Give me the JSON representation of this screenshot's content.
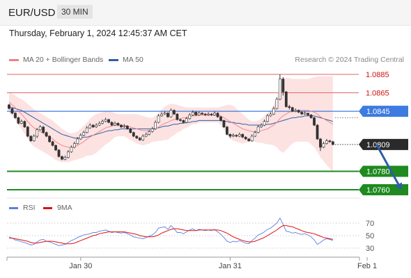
{
  "header": {
    "pair": "EUR/USD",
    "timeframe": "30 MIN"
  },
  "datetime": "Thursday, February 1, 2024 12:45:37 AM CET",
  "legend": {
    "ma20": {
      "label": "MA 20 + Bollinger Bands",
      "color": "#f08080"
    },
    "ma50": {
      "label": "MA 50",
      "color": "#2c5ea8"
    }
  },
  "credit": "Research © 2024 Trading Central",
  "rsi_legend": {
    "rsi": {
      "label": "RSI",
      "color": "#5b7fe0"
    },
    "ma9": {
      "label": "9MA",
      "color": "#e01010"
    }
  },
  "chart_data": [
    {
      "type": "candlestick",
      "ylim": [
        1.0755,
        1.0892
      ],
      "x_ticks": [
        {
          "label": "Jan 30",
          "index": 23
        },
        {
          "label": "Jan 31",
          "index": 71
        },
        {
          "label": "Feb 1",
          "index": 115
        }
      ],
      "last_price": {
        "value": 1.0809,
        "label": "1.0809"
      },
      "levels": [
        {
          "value": 1.0885,
          "label": "1.0885",
          "kind": "resistance"
        },
        {
          "value": 1.0865,
          "label": "1.0865",
          "kind": "resistance"
        },
        {
          "value": 1.0845,
          "label": "1.0845",
          "kind": "pivot"
        },
        {
          "value": 1.078,
          "label": "1.0780",
          "kind": "support"
        },
        {
          "value": 1.076,
          "label": "1.0760",
          "kind": "support"
        }
      ],
      "forecast_arrow": {
        "from": [
          118,
          1.0809
        ],
        "to": [
          126,
          1.076
        ]
      },
      "close": [
        1.0848,
        1.0843,
        1.0838,
        1.0832,
        1.0834,
        1.0828,
        1.0818,
        1.0813,
        1.0818,
        1.0825,
        1.0828,
        1.0822,
        1.0818,
        1.0812,
        1.0808,
        1.0803,
        1.0796,
        1.0793,
        1.0795,
        1.0801,
        1.0806,
        1.081,
        1.0815,
        1.0819,
        1.0822,
        1.0827,
        1.083,
        1.0828,
        1.083,
        1.0832,
        1.0834,
        1.0836,
        1.0833,
        1.083,
        1.0832,
        1.083,
        1.0828,
        1.0829,
        1.0826,
        1.0822,
        1.0818,
        1.0816,
        1.0814,
        1.0818,
        1.082,
        1.0823,
        1.0826,
        1.0833,
        1.084,
        1.0842,
        1.0843,
        1.0839,
        1.0846,
        1.0842,
        1.0836,
        1.0835,
        1.0833,
        1.0837,
        1.0841,
        1.0844,
        1.0841,
        1.0843,
        1.0842,
        1.0841,
        1.0842,
        1.0841,
        1.0843,
        1.0839,
        1.0835,
        1.0828,
        1.082,
        1.0818,
        1.0819,
        1.0818,
        1.082,
        1.0817,
        1.0815,
        1.0813,
        1.0818,
        1.0822,
        1.0828,
        1.083,
        1.0834,
        1.084,
        1.0842,
        1.0848,
        1.0858,
        1.088,
        1.0866,
        1.085,
        1.0849,
        1.0845,
        1.0846,
        1.0844,
        1.0842,
        1.0843,
        1.0841,
        1.0838,
        1.083,
        1.0815,
        1.0806,
        1.081,
        1.0813,
        1.0812,
        1.0809
      ],
      "open": [
        1.0852,
        1.0848,
        1.0843,
        1.0838,
        1.0832,
        1.0834,
        1.0828,
        1.0818,
        1.0813,
        1.0818,
        1.0825,
        1.0828,
        1.0822,
        1.0818,
        1.0812,
        1.0808,
        1.0803,
        1.0796,
        1.0793,
        1.0795,
        1.0801,
        1.0806,
        1.081,
        1.0815,
        1.0819,
        1.0822,
        1.0827,
        1.083,
        1.0828,
        1.083,
        1.0832,
        1.0834,
        1.0836,
        1.0833,
        1.083,
        1.0832,
        1.083,
        1.0828,
        1.0829,
        1.0826,
        1.0822,
        1.0818,
        1.0816,
        1.0814,
        1.0818,
        1.082,
        1.0823,
        1.0826,
        1.0833,
        1.084,
        1.0842,
        1.0843,
        1.0839,
        1.0846,
        1.0842,
        1.0836,
        1.0835,
        1.0833,
        1.0837,
        1.0841,
        1.0844,
        1.0841,
        1.0843,
        1.0842,
        1.0841,
        1.0842,
        1.0841,
        1.0843,
        1.0839,
        1.0835,
        1.0828,
        1.082,
        1.0818,
        1.0819,
        1.0818,
        1.082,
        1.0817,
        1.0815,
        1.0813,
        1.0818,
        1.0822,
        1.0828,
        1.083,
        1.0834,
        1.084,
        1.0842,
        1.0848,
        1.0858,
        1.088,
        1.0866,
        1.085,
        1.0849,
        1.0845,
        1.0846,
        1.0844,
        1.0842,
        1.0843,
        1.0841,
        1.0838,
        1.083,
        1.0815,
        1.0806,
        1.081,
        1.0813,
        1.0812
      ],
      "high": [
        1.0853,
        1.0849,
        1.0844,
        1.0839,
        1.0836,
        1.0835,
        1.0829,
        1.0819,
        1.082,
        1.0827,
        1.083,
        1.0829,
        1.0823,
        1.0819,
        1.0813,
        1.0809,
        1.0804,
        1.0797,
        1.0797,
        1.0803,
        1.0808,
        1.0812,
        1.0817,
        1.0821,
        1.0824,
        1.0829,
        1.0832,
        1.0831,
        1.0832,
        1.0834,
        1.0836,
        1.0838,
        1.0837,
        1.0834,
        1.0834,
        1.0833,
        1.0831,
        1.0831,
        1.083,
        1.0827,
        1.0823,
        1.0819,
        1.0817,
        1.082,
        1.0822,
        1.0825,
        1.0828,
        1.0835,
        1.0842,
        1.0844,
        1.0845,
        1.0844,
        1.0848,
        1.0847,
        1.0843,
        1.0837,
        1.0836,
        1.0839,
        1.0843,
        1.0846,
        1.0845,
        1.0845,
        1.0844,
        1.0843,
        1.0844,
        1.0843,
        1.0845,
        1.0844,
        1.084,
        1.0836,
        1.0829,
        1.0821,
        1.0821,
        1.082,
        1.0822,
        1.0821,
        1.0818,
        1.0816,
        1.082,
        1.0824,
        1.083,
        1.0832,
        1.0836,
        1.0842,
        1.0844,
        1.085,
        1.086,
        1.0885,
        1.0882,
        1.0867,
        1.0852,
        1.085,
        1.0848,
        1.0847,
        1.0845,
        1.0845,
        1.0843,
        1.0842,
        1.0839,
        1.0831,
        1.0816,
        1.0812,
        1.0815,
        1.0814,
        1.0813
      ],
      "low": [
        1.0847,
        1.0842,
        1.0837,
        1.0831,
        1.0831,
        1.0827,
        1.0817,
        1.0812,
        1.0812,
        1.0816,
        1.0824,
        1.0821,
        1.0817,
        1.0811,
        1.0807,
        1.0802,
        1.0795,
        1.0792,
        1.0792,
        1.0794,
        1.08,
        1.0805,
        1.0809,
        1.0814,
        1.0818,
        1.0821,
        1.0826,
        1.0827,
        1.0827,
        1.0829,
        1.0831,
        1.0833,
        1.0832,
        1.0829,
        1.0829,
        1.0829,
        1.0827,
        1.0827,
        1.0825,
        1.0821,
        1.0817,
        1.0815,
        1.0813,
        1.0813,
        1.0817,
        1.0819,
        1.0822,
        1.0825,
        1.0832,
        1.0839,
        1.0841,
        1.0838,
        1.0838,
        1.0841,
        1.0835,
        1.0834,
        1.0832,
        1.0832,
        1.0836,
        1.084,
        1.084,
        1.084,
        1.0841,
        1.084,
        1.084,
        1.084,
        1.084,
        1.0838,
        1.0834,
        1.0827,
        1.0819,
        1.0816,
        1.0817,
        1.0817,
        1.0817,
        1.0816,
        1.0814,
        1.0812,
        1.0812,
        1.0817,
        1.0821,
        1.0827,
        1.0829,
        1.0833,
        1.0839,
        1.0841,
        1.0847,
        1.0857,
        1.0862,
        1.0849,
        1.0847,
        1.0844,
        1.0844,
        1.0843,
        1.0841,
        1.0841,
        1.084,
        1.0837,
        1.0829,
        1.0814,
        1.0802,
        1.0805,
        1.0809,
        1.0811,
        1.0808
      ],
      "ma20": [
        1.0855,
        1.0852,
        1.0849,
        1.0845,
        1.0842,
        1.0838,
        1.0834,
        1.083,
        1.0827,
        1.0825,
        1.0823,
        1.0821,
        1.0819,
        1.0817,
        1.0815,
        1.0812,
        1.081,
        1.0808,
        1.0807,
        1.0806,
        1.0806,
        1.0807,
        1.0808,
        1.081,
        1.0812,
        1.0815,
        1.0817,
        1.0819,
        1.0821,
        1.0823,
        1.0825,
        1.0827,
        1.0828,
        1.0829,
        1.083,
        1.083,
        1.083,
        1.083,
        1.0829,
        1.0828,
        1.0827,
        1.0826,
        1.0825,
        1.0824,
        1.0824,
        1.0824,
        1.0825,
        1.0826,
        1.0828,
        1.083,
        1.0832,
        1.0833,
        1.0835,
        1.0836,
        1.0837,
        1.0837,
        1.0838,
        1.0838,
        1.0839,
        1.084,
        1.084,
        1.0841,
        1.0841,
        1.0841,
        1.0841,
        1.0841,
        1.0841,
        1.0841,
        1.084,
        1.0838,
        1.0836,
        1.0834,
        1.0832,
        1.083,
        1.0828,
        1.0826,
        1.0825,
        1.0824,
        1.0823,
        1.0823,
        1.0823,
        1.0824,
        1.0825,
        1.0826,
        1.0828,
        1.083,
        1.0833,
        1.0837,
        1.084,
        1.0842,
        1.0844,
        1.0845,
        1.0846,
        1.0846,
        1.0846,
        1.0846,
        1.0846,
        1.0845,
        1.0844,
        1.0842,
        1.0839,
        1.0837,
        1.0835,
        1.0833,
        1.0831
      ],
      "ma50": [
        1.085,
        1.0849,
        1.0848,
        1.0847,
        1.0846,
        1.0844,
        1.0842,
        1.084,
        1.0838,
        1.0836,
        1.0834,
        1.0832,
        1.083,
        1.0828,
        1.0826,
        1.0824,
        1.0822,
        1.082,
        1.0819,
        1.0818,
        1.0817,
        1.0816,
        1.0816,
        1.0816,
        1.0817,
        1.0817,
        1.0818,
        1.0819,
        1.082,
        1.0821,
        1.0822,
        1.0823,
        1.0824,
        1.0824,
        1.0825,
        1.0825,
        1.0826,
        1.0826,
        1.0826,
        1.0826,
        1.0826,
        1.0826,
        1.0826,
        1.0826,
        1.0826,
        1.0826,
        1.0826,
        1.0827,
        1.0827,
        1.0828,
        1.0829,
        1.0829,
        1.083,
        1.0831,
        1.0831,
        1.0832,
        1.0832,
        1.0833,
        1.0833,
        1.0834,
        1.0834,
        1.0835,
        1.0835,
        1.0835,
        1.0835,
        1.0835,
        1.0835,
        1.0835,
        1.0835,
        1.0834,
        1.0834,
        1.0833,
        1.0833,
        1.0832,
        1.0832,
        1.0831,
        1.0831,
        1.083,
        1.083,
        1.083,
        1.083,
        1.083,
        1.083,
        1.0831,
        1.0831,
        1.0832,
        1.0833,
        1.0834,
        1.0835,
        1.0836,
        1.0837,
        1.0838,
        1.0838,
        1.0839,
        1.0839,
        1.084,
        1.084,
        1.084,
        1.084,
        1.0839,
        1.0838,
        1.0837,
        1.0836,
        1.0835,
        1.0834
      ],
      "bb_upper": [
        1.0866,
        1.0864,
        1.0862,
        1.086,
        1.0858,
        1.0856,
        1.0853,
        1.085,
        1.0847,
        1.0845,
        1.0843,
        1.0841,
        1.0839,
        1.0837,
        1.0835,
        1.0832,
        1.0829,
        1.0826,
        1.0824,
        1.0822,
        1.0821,
        1.0822,
        1.0823,
        1.0826,
        1.0829,
        1.0833,
        1.0837,
        1.084,
        1.0842,
        1.0843,
        1.0844,
        1.0845,
        1.0845,
        1.0844,
        1.0843,
        1.0842,
        1.0842,
        1.0842,
        1.0842,
        1.0842,
        1.0842,
        1.0842,
        1.0841,
        1.084,
        1.0839,
        1.0838,
        1.0838,
        1.084,
        1.0843,
        1.0847,
        1.085,
        1.0852,
        1.0853,
        1.0853,
        1.0852,
        1.0851,
        1.085,
        1.0849,
        1.0849,
        1.0849,
        1.0849,
        1.0849,
        1.0849,
        1.0849,
        1.0849,
        1.0849,
        1.0849,
        1.0849,
        1.085,
        1.0851,
        1.0852,
        1.0852,
        1.0851,
        1.0848,
        1.0845,
        1.0842,
        1.0839,
        1.0836,
        1.0834,
        1.0834,
        1.0835,
        1.0837,
        1.084,
        1.0843,
        1.0847,
        1.0852,
        1.086,
        1.0872,
        1.088,
        1.0881,
        1.0881,
        1.088,
        1.088,
        1.088,
        1.088,
        1.088,
        1.088,
        1.0881,
        1.0882,
        1.0883,
        1.0883,
        1.0883,
        1.0883,
        1.0883,
        1.0883
      ],
      "bb_lower": [
        1.0844,
        1.084,
        1.0836,
        1.083,
        1.0826,
        1.082,
        1.0815,
        1.081,
        1.0807,
        1.0805,
        1.0803,
        1.0801,
        1.0799,
        1.0797,
        1.0795,
        1.0792,
        1.0791,
        1.079,
        1.079,
        1.079,
        1.0791,
        1.0792,
        1.0793,
        1.0794,
        1.0795,
        1.0797,
        1.0797,
        1.0798,
        1.08,
        1.0803,
        1.0806,
        1.0809,
        1.0811,
        1.0814,
        1.0817,
        1.0818,
        1.0818,
        1.0818,
        1.0816,
        1.0814,
        1.0812,
        1.081,
        1.0809,
        1.0808,
        1.0809,
        1.081,
        1.0812,
        1.0812,
        1.0813,
        1.0813,
        1.0814,
        1.0814,
        1.0817,
        1.0819,
        1.0822,
        1.0823,
        1.0826,
        1.0827,
        1.0829,
        1.0831,
        1.0831,
        1.0833,
        1.0833,
        1.0833,
        1.0833,
        1.0833,
        1.0833,
        1.0833,
        1.083,
        1.0825,
        1.082,
        1.0816,
        1.0813,
        1.0812,
        1.0811,
        1.081,
        1.0811,
        1.0812,
        1.0812,
        1.0812,
        1.0811,
        1.0811,
        1.081,
        1.0809,
        1.0809,
        1.0808,
        1.0806,
        1.0802,
        1.08,
        1.0803,
        1.0807,
        1.081,
        1.0812,
        1.0812,
        1.0812,
        1.0812,
        1.0812,
        1.0809,
        1.0806,
        1.0801,
        1.0795,
        1.0791,
        1.0787,
        1.0783,
        1.0779
      ]
    },
    {
      "type": "line",
      "ylim": [
        20,
        80
      ],
      "y_ticks": [
        {
          "value": 70,
          "label": "70"
        },
        {
          "value": 50,
          "label": "50"
        },
        {
          "value": 30,
          "label": "30"
        }
      ],
      "series": [
        {
          "name": "RSI",
          "values": [
            48,
            46,
            43,
            42,
            40,
            39,
            37,
            35,
            36,
            40,
            43,
            44,
            41,
            40,
            38,
            36,
            34,
            35,
            36,
            39,
            42,
            44,
            47,
            49,
            51,
            52,
            53,
            55,
            55,
            57,
            58,
            59,
            57,
            55,
            56,
            55,
            54,
            55,
            53,
            51,
            48,
            47,
            46,
            45,
            47,
            49,
            51,
            55,
            62,
            63,
            64,
            60,
            66,
            61,
            55,
            55,
            53,
            56,
            59,
            61,
            58,
            60,
            59,
            58,
            59,
            58,
            60,
            56,
            52,
            47,
            41,
            39,
            41,
            40,
            42,
            40,
            38,
            37,
            42,
            46,
            51,
            53,
            56,
            60,
            62,
            66,
            70,
            78,
            68,
            57,
            56,
            54,
            55,
            53,
            52,
            53,
            51,
            48,
            43,
            36,
            39,
            43,
            45,
            44,
            42
          ]
        },
        {
          "name": "9MA",
          "values": [
            46,
            46,
            45,
            44,
            43,
            42,
            41,
            39,
            38,
            38,
            39,
            40,
            41,
            41,
            41,
            40,
            39,
            38,
            37,
            37,
            37,
            38,
            40,
            42,
            44,
            46,
            48,
            50,
            51,
            53,
            54,
            55,
            56,
            56,
            56,
            56,
            56,
            56,
            55,
            54,
            53,
            52,
            50,
            49,
            48,
            48,
            48,
            49,
            51,
            54,
            56,
            58,
            60,
            61,
            61,
            60,
            59,
            58,
            58,
            58,
            58,
            59,
            59,
            59,
            59,
            59,
            59,
            59,
            58,
            56,
            54,
            51,
            48,
            46,
            44,
            42,
            41,
            40,
            40,
            41,
            43,
            45,
            47,
            50,
            53,
            56,
            59,
            63,
            66,
            66,
            65,
            64,
            62,
            60,
            58,
            56,
            55,
            54,
            53,
            51,
            49,
            47,
            46,
            45,
            44
          ]
        }
      ]
    }
  ]
}
